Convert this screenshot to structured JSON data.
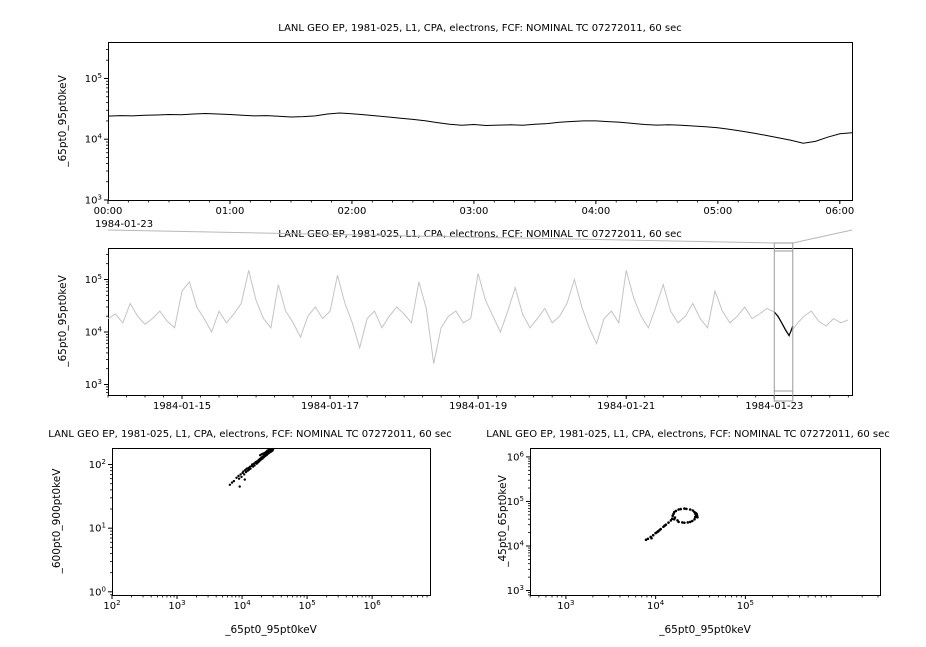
{
  "page": {
    "background": "#ffffff",
    "foreground": "#000000"
  },
  "overview_link": {
    "color": "#b8b8b8"
  },
  "chart_data": [
    {
      "type": "line",
      "title": "LANL GEO EP, 1981-025, L1, CPA, electrons, FCF: NOMINAL TC 07272011, 60 sec",
      "ylabel": "_65pt0_95pt0keV",
      "xlabel": "",
      "context_label": "1984-01-23",
      "x_range": [
        0,
        6.1
      ],
      "x_minor_step": 0.16667,
      "x_ticks": [
        {
          "v": 0,
          "label": "00:00"
        },
        {
          "v": 1,
          "label": "01:00"
        },
        {
          "v": 2,
          "label": "02:00"
        },
        {
          "v": 3,
          "label": "03:00"
        },
        {
          "v": 4,
          "label": "04:00"
        },
        {
          "v": 5,
          "label": "05:00"
        },
        {
          "v": 6,
          "label": "06:00"
        }
      ],
      "y_log_range": [
        3,
        5.6
      ],
      "y_tick_exponents": [
        3,
        4,
        5
      ],
      "grid": false,
      "legend": "none",
      "series": [
        {
          "name": "electron-flux-65-95keV",
          "color": "#000000",
          "width": 1,
          "x_start": 0,
          "x_step": 0.1,
          "y_scale": 1000,
          "y": [
            24,
            24.5,
            24.2,
            24.8,
            25,
            25.5,
            25.2,
            26,
            26.5,
            26,
            25.5,
            24.8,
            24.2,
            24.5,
            23.8,
            23.2,
            23.6,
            24.2,
            26,
            27,
            26.2,
            25.2,
            24.2,
            23.2,
            22.2,
            21.2,
            20.2,
            18.8,
            17.6,
            17,
            17.5,
            16.8,
            17.1,
            17.3,
            17,
            17.6,
            18.1,
            19,
            19.6,
            20,
            20,
            19.5,
            19,
            18.2,
            17.5,
            17.1,
            17.3,
            17,
            16.5,
            16,
            15.5,
            14.5,
            13.5,
            12.5,
            11.5,
            10.5,
            9.6,
            8.6,
            9.2,
            10.8,
            12.3,
            12.8
          ]
        }
      ]
    },
    {
      "type": "line",
      "title": "LANL GEO EP, 1981-025, L1, CPA, electrons, FCF: NOMINAL TC 07272011, 60 sec",
      "ylabel": "_65pt0_95pt0keV",
      "xlabel": "",
      "x_range": [
        14,
        24.05
      ],
      "x_minor_step": 0.25,
      "x_ticks": [
        {
          "v": 15,
          "label": "1984-01-15"
        },
        {
          "v": 17,
          "label": "1984-01-17"
        },
        {
          "v": 19,
          "label": "1984-01-19"
        },
        {
          "v": 21,
          "label": "1984-01-21"
        },
        {
          "v": 23,
          "label": "1984-01-23"
        }
      ],
      "y_log_range": [
        2.8,
        5.6
      ],
      "y_tick_exponents": [
        3,
        4,
        5
      ],
      "grid": false,
      "legend": "none",
      "series": [
        {
          "name": "context-flux",
          "color": "#c4c4c4",
          "width": 1,
          "x_start": 14,
          "x_step": 0.1,
          "y_scale": 1000,
          "y": [
            18,
            22,
            15,
            35,
            20,
            14,
            18,
            25,
            16,
            12,
            60,
            90,
            30,
            18,
            10,
            25,
            15,
            22,
            35,
            150,
            40,
            18,
            12,
            80,
            25,
            15,
            8,
            20,
            30,
            18,
            25,
            120,
            35,
            15,
            5,
            18,
            25,
            12,
            20,
            30,
            22,
            15,
            90,
            28,
            2.5,
            12,
            20,
            25,
            15,
            18,
            130,
            40,
            20,
            10,
            25,
            70,
            22,
            12,
            18,
            28,
            15,
            20,
            35,
            100,
            30,
            12,
            6,
            18,
            25,
            15,
            150,
            45,
            20,
            12,
            30,
            80,
            25,
            15,
            20,
            35,
            18,
            12,
            60,
            25,
            15,
            20,
            30,
            18,
            22,
            28,
            24,
            15,
            9,
            14,
            20,
            25,
            16,
            13,
            18,
            15,
            17
          ]
        },
        {
          "name": "selected-interval-flux",
          "color": "#000000",
          "width": 1.2,
          "x": [
            23.0,
            23.05,
            23.1,
            23.15,
            23.2,
            23.25
          ],
          "y_scale": 1000,
          "y": [
            24,
            20,
            15,
            11,
            8.5,
            13
          ]
        }
      ],
      "selection": {
        "x_start": 23.0,
        "x_end": 23.25,
        "color": "#9a9a9a"
      }
    },
    {
      "type": "scatter",
      "title": "LANL GEO EP, 1981-025, L1, CPA, electrons, FCF: NOMINAL TC 07272011, 60 sec",
      "xlabel": "_65pt0_95pt0keV",
      "ylabel": "_600pt0_900pt0keV",
      "x_log_range": [
        2,
        6.89
      ],
      "x_tick_exponents": [
        2,
        3,
        4,
        5,
        6
      ],
      "y_log_range": [
        -0.05,
        2.26
      ],
      "y_tick_exponents": [
        0,
        1,
        2
      ],
      "grid": false,
      "legend": "none",
      "point_color": "#000000",
      "point_radius": 1.2,
      "points": [
        [
          6500,
          48
        ],
        [
          7000,
          52
        ],
        [
          7500,
          55
        ],
        [
          8200,
          62
        ],
        [
          8800,
          66
        ],
        [
          9000,
          60
        ],
        [
          9200,
          45
        ],
        [
          9500,
          70
        ],
        [
          9800,
          64
        ],
        [
          10200,
          74
        ],
        [
          10500,
          78
        ],
        [
          10800,
          70
        ],
        [
          11000,
          58
        ],
        [
          11200,
          82
        ],
        [
          11500,
          76
        ],
        [
          11800,
          86
        ],
        [
          12200,
          80
        ],
        [
          12500,
          88
        ],
        [
          12800,
          83
        ],
        [
          13200,
          92
        ],
        [
          13500,
          86
        ],
        [
          14000,
          95
        ],
        [
          14300,
          100
        ],
        [
          14800,
          93
        ],
        [
          15200,
          103
        ],
        [
          15600,
          97
        ],
        [
          16000,
          107
        ],
        [
          16400,
          110
        ],
        [
          16800,
          103
        ],
        [
          17200,
          113
        ],
        [
          17600,
          108
        ],
        [
          18000,
          118
        ],
        [
          18400,
          112
        ],
        [
          18800,
          122
        ],
        [
          19000,
          140
        ],
        [
          19200,
          118
        ],
        [
          19600,
          127
        ],
        [
          20000,
          122
        ],
        [
          20000,
          145
        ],
        [
          20400,
          131
        ],
        [
          20800,
          125
        ],
        [
          21000,
          148
        ],
        [
          21200,
          135
        ],
        [
          21600,
          130
        ],
        [
          22000,
          140
        ],
        [
          22000,
          150
        ],
        [
          22400,
          135
        ],
        [
          22500,
          152
        ],
        [
          22800,
          144
        ],
        [
          23000,
          155
        ],
        [
          23200,
          138
        ],
        [
          23500,
          158
        ],
        [
          23600,
          148
        ],
        [
          24000,
          142
        ],
        [
          24000,
          160
        ],
        [
          24400,
          152
        ],
        [
          24500,
          165
        ],
        [
          24800,
          147
        ],
        [
          25000,
          158
        ],
        [
          25200,
          156
        ],
        [
          25500,
          168
        ],
        [
          25600,
          150
        ],
        [
          26000,
          160
        ],
        [
          26000,
          163
        ],
        [
          26500,
          155
        ],
        [
          26500,
          170
        ],
        [
          27000,
          165
        ],
        [
          27000,
          160
        ],
        [
          27500,
          158
        ],
        [
          28000,
          168
        ],
        [
          28500,
          162
        ],
        [
          29000,
          172
        ],
        [
          29500,
          166
        ],
        [
          30000,
          175
        ]
      ]
    },
    {
      "type": "scatter",
      "title": "LANL GEO EP, 1981-025, L1, CPA, electrons, FCF: NOMINAL TC 07272011, 60 sec",
      "xlabel": "_65pt0_95pt0keV",
      "ylabel": "_45pt0_65pt0keV",
      "x_log_range": [
        2.6,
        6.5
      ],
      "x_tick_exponents": [
        3,
        4,
        5
      ],
      "y_log_range": [
        2.9,
        6.2
      ],
      "y_tick_exponents": [
        3,
        4,
        5,
        6
      ],
      "grid": false,
      "legend": "none",
      "point_color": "#000000",
      "point_radius": 1.3,
      "points": [
        [
          28300,
          48000
        ],
        [
          27100,
          57500
        ],
        [
          24300,
          65900
        ],
        [
          20900,
          69200
        ],
        [
          18000,
          65900
        ],
        [
          16100,
          57500
        ],
        [
          15500,
          47900
        ],
        [
          16100,
          39800
        ],
        [
          18000,
          34800
        ],
        [
          20900,
          33100
        ],
        [
          24300,
          34800
        ],
        [
          27100,
          39800
        ],
        [
          27800,
          52000
        ],
        [
          26000,
          62500
        ],
        [
          22000,
          68000
        ],
        [
          19000,
          67500
        ],
        [
          16800,
          61500
        ],
        [
          15800,
          52500
        ],
        [
          16400,
          43500
        ],
        [
          17500,
          37500
        ],
        [
          19800,
          33800
        ],
        [
          22800,
          33800
        ],
        [
          25600,
          36500
        ],
        [
          27600,
          44500
        ],
        [
          28500,
          50000
        ],
        [
          28800,
          46000
        ],
        [
          28000,
          55000
        ],
        [
          29000,
          48500
        ],
        [
          28600,
          52500
        ],
        [
          29200,
          44000
        ],
        [
          8200,
          14500
        ],
        [
          8800,
          16000
        ],
        [
          9400,
          17500
        ],
        [
          10000,
          19500
        ],
        [
          10700,
          21500
        ],
        [
          11400,
          24000
        ],
        [
          12200,
          27000
        ],
        [
          13000,
          30000
        ],
        [
          13900,
          33500
        ],
        [
          14800,
          37500
        ],
        [
          15300,
          41000
        ],
        [
          9000,
          15000
        ],
        [
          10400,
          20500
        ],
        [
          12600,
          28500
        ],
        [
          11000,
          22500
        ],
        [
          7800,
          13800
        ]
      ]
    }
  ]
}
